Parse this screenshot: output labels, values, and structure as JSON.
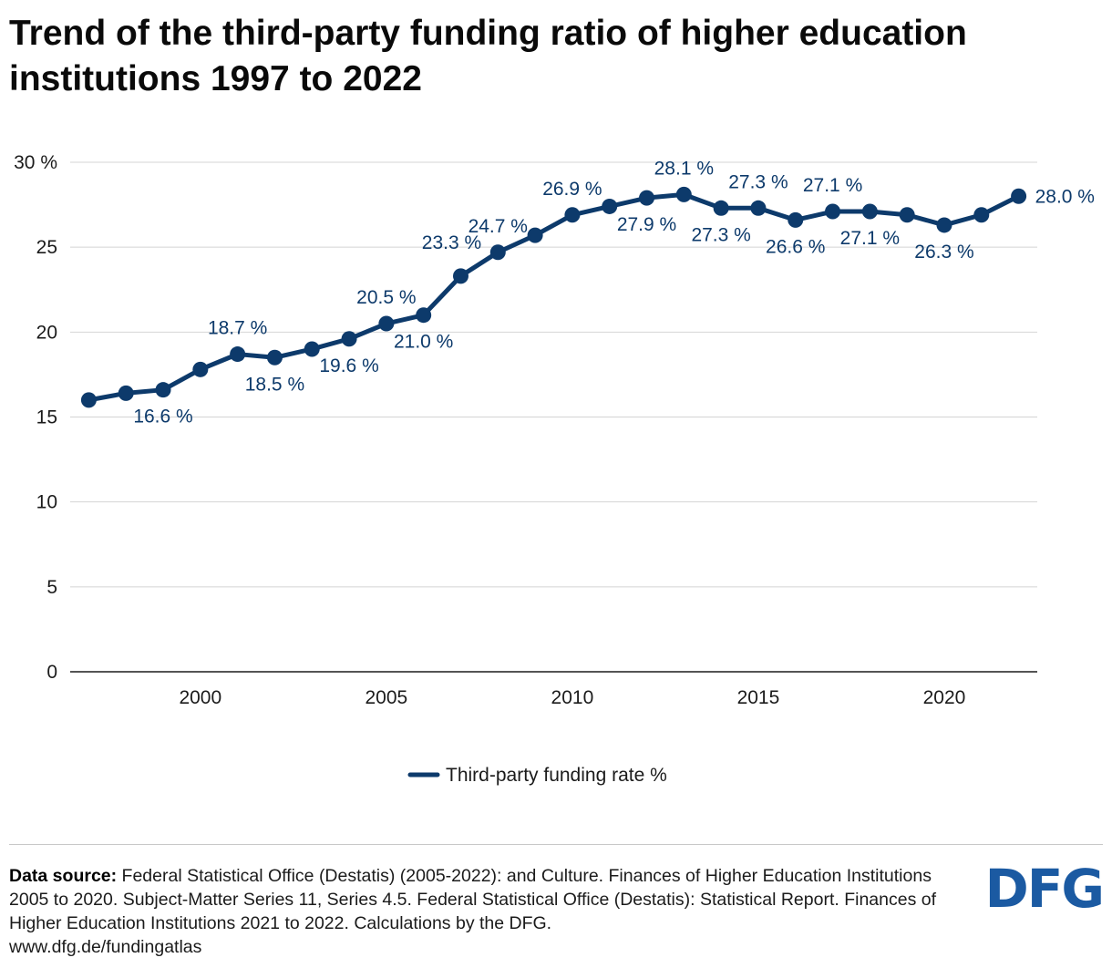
{
  "title": "Trend of the third-party funding ratio of higher education institutions 1997 to 2022",
  "chart_data": {
    "type": "line",
    "title": "Trend of the third-party funding ratio of higher education institutions 1997 to 2022",
    "xlabel": "",
    "ylabel": "",
    "x": [
      1997,
      1998,
      1999,
      2000,
      2001,
      2002,
      2003,
      2004,
      2005,
      2006,
      2007,
      2008,
      2009,
      2010,
      2011,
      2012,
      2013,
      2014,
      2015,
      2016,
      2017,
      2018,
      2019,
      2020,
      2021,
      2022
    ],
    "series": [
      {
        "name": "Third-party funding rate %",
        "color": "#0d3a6b",
        "values": [
          16.0,
          16.4,
          16.6,
          17.8,
          18.7,
          18.5,
          19.0,
          19.6,
          20.5,
          21.0,
          23.3,
          24.7,
          25.7,
          26.9,
          27.4,
          27.9,
          28.1,
          27.3,
          27.3,
          26.6,
          27.1,
          27.1,
          26.9,
          26.3,
          26.9,
          28.0
        ]
      }
    ],
    "ylim": [
      0,
      30
    ],
    "xlim": [
      1996.5,
      2022.5
    ],
    "yticks": [
      0,
      5,
      10,
      15,
      20,
      25,
      30
    ],
    "ytick_labels": [
      "0",
      "5",
      "10",
      "15",
      "20",
      "25",
      "30 %"
    ],
    "xticks": [
      2000,
      2005,
      2010,
      2015,
      2020
    ],
    "xtick_labels": [
      "2000",
      "2005",
      "2010",
      "2015",
      "2020"
    ],
    "grid": true,
    "legend_position": "bottom-center",
    "data_labels": [
      {
        "year": 1999,
        "text": "16.6 %",
        "pos": "below"
      },
      {
        "year": 2001,
        "text": "18.7 %",
        "pos": "above"
      },
      {
        "year": 2002,
        "text": "18.5 %",
        "pos": "below"
      },
      {
        "year": 2004,
        "text": "19.6 %",
        "pos": "below"
      },
      {
        "year": 2005,
        "text": "20.5 %",
        "pos": "above"
      },
      {
        "year": 2006,
        "text": "21.0 %",
        "pos": "below"
      },
      {
        "year": 2007,
        "text": "23.3 %",
        "pos": "above-left"
      },
      {
        "year": 2008,
        "text": "24.7 %",
        "pos": "above"
      },
      {
        "year": 2010,
        "text": "26.9 %",
        "pos": "above"
      },
      {
        "year": 2012,
        "text": "27.9 %",
        "pos": "below"
      },
      {
        "year": 2013,
        "text": "28.1 %",
        "pos": "above"
      },
      {
        "year": 2014,
        "text": "27.3 %",
        "pos": "below"
      },
      {
        "year": 2015,
        "text": "27.3 %",
        "pos": "above"
      },
      {
        "year": 2016,
        "text": "26.6 %",
        "pos": "below"
      },
      {
        "year": 2017,
        "text": "27.1 %",
        "pos": "above"
      },
      {
        "year": 2018,
        "text": "27.1 %",
        "pos": "below"
      },
      {
        "year": 2020,
        "text": "26.3 %",
        "pos": "below"
      },
      {
        "year": 2022,
        "text": "28.0 %",
        "pos": "right"
      }
    ]
  },
  "footer": {
    "source_label": "Data source:",
    "source_text": "Federal Statistical Office (Destatis) (2005-2022): and Culture. Finances of Higher Education Institutions 2005 to 2020. Subject-Matter Series 11, Series 4.5. Federal Statistical Office (Destatis): Statistical Report. Finances of Higher Education Institutions 2021 to 2022. Calculations by the DFG.",
    "url": "www.dfg.de/fundingatlas",
    "logo_text": "DFG"
  }
}
